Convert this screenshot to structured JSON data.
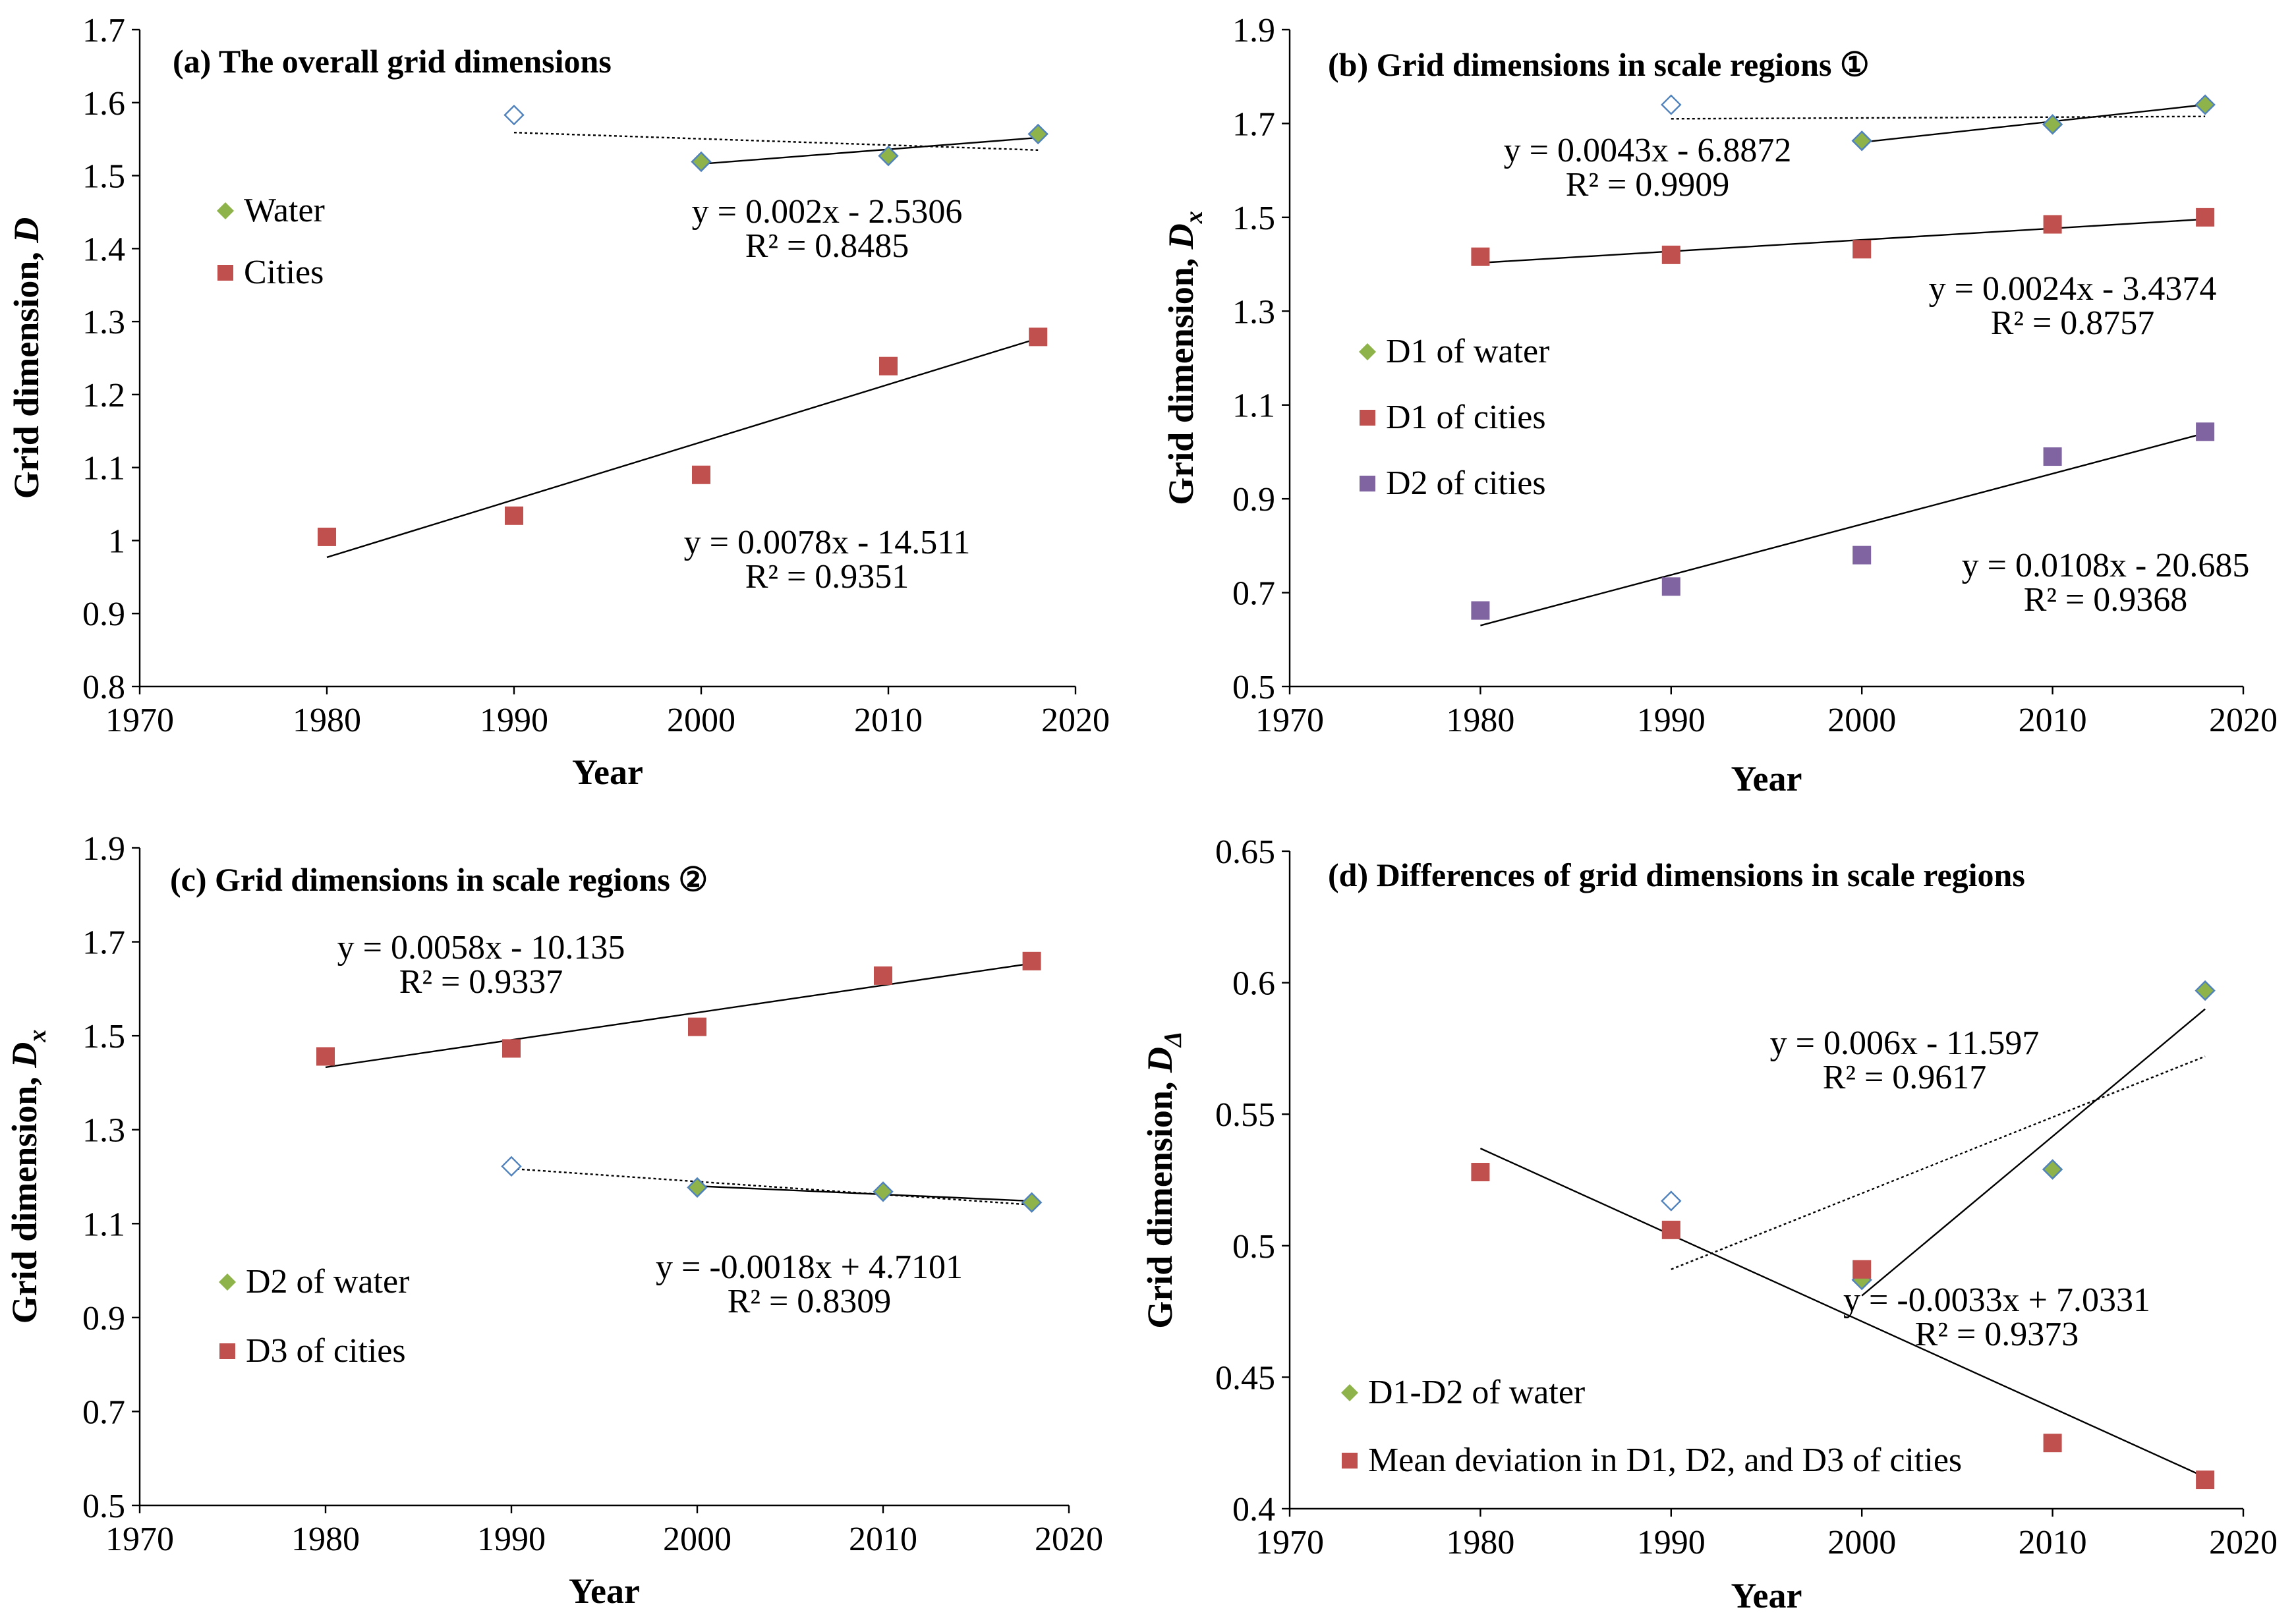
{
  "chart_data": [
    {
      "type": "scatter",
      "title": "(a) The overall grid dimensions",
      "xlabel": "Year",
      "ylabel": "Grid dimension, ",
      "ylabel_symbol": "D",
      "ylabel_sub": "",
      "xlim": [
        1970,
        2020
      ],
      "ylim": [
        0.8,
        1.7
      ],
      "xticks": [
        1970,
        1980,
        1990,
        2000,
        2010,
        2020
      ],
      "yticks": [
        0.8,
        0.9,
        1,
        1.1,
        1.2,
        1.3,
        1.4,
        1.5,
        1.6,
        1.7
      ],
      "ytick_labels": [
        "0.8",
        "0.9",
        "1",
        "1.1",
        "1.2",
        "1.3",
        "1.4",
        "1.5",
        "1.6",
        "1.7"
      ],
      "series": [
        {
          "name": "Water",
          "marker": "diamond",
          "color": "#8DB34A",
          "points": [
            {
              "x": 1990,
              "y": 1.583,
              "hollow": true
            },
            {
              "x": 2000,
              "y": 1.519
            },
            {
              "x": 2010,
              "y": 1.527
            },
            {
              "x": 2018,
              "y": 1.557
            }
          ]
        },
        {
          "name": "Cities",
          "marker": "square",
          "color": "#C0504D",
          "points": [
            {
              "x": 1980,
              "y": 1.005
            },
            {
              "x": 1990,
              "y": 1.034
            },
            {
              "x": 2000,
              "y": 1.09
            },
            {
              "x": 2010,
              "y": 1.239
            },
            {
              "x": 2018,
              "y": 1.279
            }
          ]
        }
      ],
      "trendlines": [
        {
          "style": "dotted",
          "x0": 1990,
          "y0": 1.559,
          "x1": 2018,
          "y1": 1.535
        },
        {
          "style": "solid",
          "x0": 2000,
          "y0": 1.516,
          "x1": 2018,
          "y1": 1.552
        },
        {
          "style": "solid",
          "x0": 1980,
          "y0": 0.977,
          "x1": 2018,
          "y1": 1.277
        }
      ],
      "legend": [
        {
          "label": "Water",
          "marker": "diamond",
          "color": "#8DB34A"
        },
        {
          "label": "Cities",
          "marker": "square",
          "color": "#C0504D"
        }
      ],
      "equations": [
        {
          "eq": "y = 0.002x - 2.5306",
          "r2": "R² = 0.8485"
        },
        {
          "eq": "y = 0.0078x - 14.511",
          "r2": "R² = 0.9351"
        }
      ]
    },
    {
      "type": "scatter",
      "title": "(b) Grid dimensions in scale regions ①",
      "xlabel": "Year",
      "ylabel": "Grid dimension, ",
      "ylabel_symbol": "D",
      "ylabel_sub": "x",
      "xlim": [
        1970,
        2020
      ],
      "ylim": [
        0.5,
        1.9
      ],
      "xticks": [
        1970,
        1980,
        1990,
        2000,
        2010,
        2020
      ],
      "yticks": [
        0.5,
        0.7,
        0.9,
        1.1,
        1.3,
        1.5,
        1.7,
        1.9
      ],
      "ytick_labels": [
        "0.5",
        "0.7",
        "0.9",
        "1.1",
        "1.3",
        "1.5",
        "1.7",
        "1.9"
      ],
      "series": [
        {
          "name": "D1 of water",
          "marker": "diamond",
          "color": "#8DB34A",
          "points": [
            {
              "x": 1990,
              "y": 1.74,
              "hollow": true
            },
            {
              "x": 2000,
              "y": 1.663
            },
            {
              "x": 2010,
              "y": 1.698
            },
            {
              "x": 2018,
              "y": 1.74
            }
          ]
        },
        {
          "name": "D1 of cities",
          "marker": "square",
          "color": "#C0504D",
          "points": [
            {
              "x": 1980,
              "y": 1.416
            },
            {
              "x": 1990,
              "y": 1.42
            },
            {
              "x": 2000,
              "y": 1.432
            },
            {
              "x": 2010,
              "y": 1.485
            },
            {
              "x": 2018,
              "y": 1.5
            }
          ]
        },
        {
          "name": "D2 of cities",
          "marker": "square",
          "color": "#8064A2",
          "points": [
            {
              "x": 1980,
              "y": 0.662
            },
            {
              "x": 1990,
              "y": 0.713
            },
            {
              "x": 2000,
              "y": 0.78
            },
            {
              "x": 2010,
              "y": 0.99
            },
            {
              "x": 2018,
              "y": 1.043
            }
          ]
        }
      ],
      "trendlines": [
        {
          "style": "dotted",
          "x0": 1990,
          "y0": 1.71,
          "x1": 2018,
          "y1": 1.715
        },
        {
          "style": "solid",
          "x0": 2000,
          "y0": 1.66,
          "x1": 2018,
          "y1": 1.74
        },
        {
          "style": "solid",
          "x0": 1980,
          "y0": 1.403,
          "x1": 2018,
          "y1": 1.496
        },
        {
          "style": "solid",
          "x0": 1980,
          "y0": 0.63,
          "x1": 2018,
          "y1": 1.04
        }
      ],
      "legend": [
        {
          "label": "D1 of water",
          "marker": "diamond",
          "color": "#8DB34A"
        },
        {
          "label": "D1 of cities",
          "marker": "square",
          "color": "#C0504D"
        },
        {
          "label": "D2 of cities",
          "marker": "square",
          "color": "#8064A2"
        }
      ],
      "equations": [
        {
          "eq": "y = 0.0043x - 6.8872",
          "r2": "R² = 0.9909"
        },
        {
          "eq": "y = 0.0024x - 3.4374",
          "r2": "R² = 0.8757"
        },
        {
          "eq": "y = 0.0108x - 20.685",
          "r2": "R² = 0.9368"
        }
      ]
    },
    {
      "type": "scatter",
      "title": "(c) Grid dimensions in scale regions ②",
      "xlabel": "Year",
      "ylabel": "Grid dimension, ",
      "ylabel_symbol": "D",
      "ylabel_sub": "x",
      "xlim": [
        1970,
        2020
      ],
      "ylim": [
        0.5,
        1.9
      ],
      "xticks": [
        1970,
        1980,
        1990,
        2000,
        2010,
        2020
      ],
      "yticks": [
        0.5,
        0.7,
        0.9,
        1.1,
        1.3,
        1.5,
        1.7,
        1.9
      ],
      "ytick_labels": [
        "0.5",
        "0.7",
        "0.9",
        "1.1",
        "1.3",
        "1.5",
        "1.7",
        "1.9"
      ],
      "series": [
        {
          "name": "D2 of water",
          "marker": "diamond",
          "color": "#8DB34A",
          "points": [
            {
              "x": 1990,
              "y": 1.222,
              "hollow": true
            },
            {
              "x": 2000,
              "y": 1.177
            },
            {
              "x": 2010,
              "y": 1.168
            },
            {
              "x": 2018,
              "y": 1.145
            }
          ]
        },
        {
          "name": "D3 of cities",
          "marker": "square",
          "color": "#C0504D",
          "points": [
            {
              "x": 1980,
              "y": 1.456
            },
            {
              "x": 1990,
              "y": 1.473
            },
            {
              "x": 2000,
              "y": 1.519
            },
            {
              "x": 2010,
              "y": 1.628
            },
            {
              "x": 2018,
              "y": 1.659
            }
          ]
        }
      ],
      "trendlines": [
        {
          "style": "dotted",
          "x0": 1990,
          "y0": 1.217,
          "x1": 2018,
          "y1": 1.14
        },
        {
          "style": "solid",
          "x0": 2000,
          "y0": 1.18,
          "x1": 2018,
          "y1": 1.148
        },
        {
          "style": "solid",
          "x0": 1980,
          "y0": 1.433,
          "x1": 2018,
          "y1": 1.654
        }
      ],
      "legend": [
        {
          "label": "D2 of water",
          "marker": "diamond",
          "color": "#8DB34A"
        },
        {
          "label": "D3 of cities",
          "marker": "square",
          "color": "#C0504D"
        }
      ],
      "equations": [
        {
          "eq": "y = 0.0058x - 10.135",
          "r2": "R² = 0.9337"
        },
        {
          "eq": "y = -0.0018x + 4.7101",
          "r2": "R² = 0.8309"
        }
      ]
    },
    {
      "type": "scatter",
      "title": "(d) Differences of grid dimensions in scale regions",
      "xlabel": "Year",
      "ylabel": "Grid dimension, ",
      "ylabel_symbol": "D",
      "ylabel_sub": "Δ",
      "xlim": [
        1970,
        2020
      ],
      "ylim": [
        0.4,
        0.65
      ],
      "xticks": [
        1970,
        1980,
        1990,
        2000,
        2010,
        2020
      ],
      "yticks": [
        0.4,
        0.45,
        0.5,
        0.55,
        0.6,
        0.65
      ],
      "ytick_labels": [
        "0.4",
        "0.45",
        "0.5",
        "0.55",
        "0.6",
        "0.65"
      ],
      "series": [
        {
          "name": "D1-D2 of water",
          "marker": "diamond",
          "color": "#8DB34A",
          "points": [
            {
              "x": 1990,
              "y": 0.517,
              "hollow": true
            },
            {
              "x": 2000,
              "y": 0.487
            },
            {
              "x": 2010,
              "y": 0.529
            },
            {
              "x": 2018,
              "y": 0.597
            }
          ]
        },
        {
          "name": "Mean deviation in D1, D2, and D3 of cities",
          "marker": "square",
          "color": "#C0504D",
          "points": [
            {
              "x": 1980,
              "y": 0.528
            },
            {
              "x": 1990,
              "y": 0.506
            },
            {
              "x": 2000,
              "y": 0.491
            },
            {
              "x": 2010,
              "y": 0.425
            },
            {
              "x": 2018,
              "y": 0.411
            }
          ]
        }
      ],
      "trendlines": [
        {
          "style": "dotted",
          "x0": 1990,
          "y0": 0.491,
          "x1": 2018,
          "y1": 0.572
        },
        {
          "style": "solid",
          "x0": 2000,
          "y0": 0.481,
          "x1": 2018,
          "y1": 0.59
        },
        {
          "style": "solid",
          "x0": 1980,
          "y0": 0.537,
          "x1": 2018,
          "y1": 0.412
        }
      ],
      "legend": [
        {
          "label": "D1-D2 of water",
          "marker": "diamond",
          "color": "#8DB34A"
        },
        {
          "label": "Mean deviation in D1, D2, and D3 of cities",
          "marker": "square",
          "color": "#C0504D"
        }
      ],
      "equations": [
        {
          "eq": "y = 0.006x - 11.597",
          "r2": "R² = 0.9617"
        },
        {
          "eq": "y = -0.0033x + 7.0331",
          "r2": "R² = 0.9373"
        }
      ]
    }
  ]
}
